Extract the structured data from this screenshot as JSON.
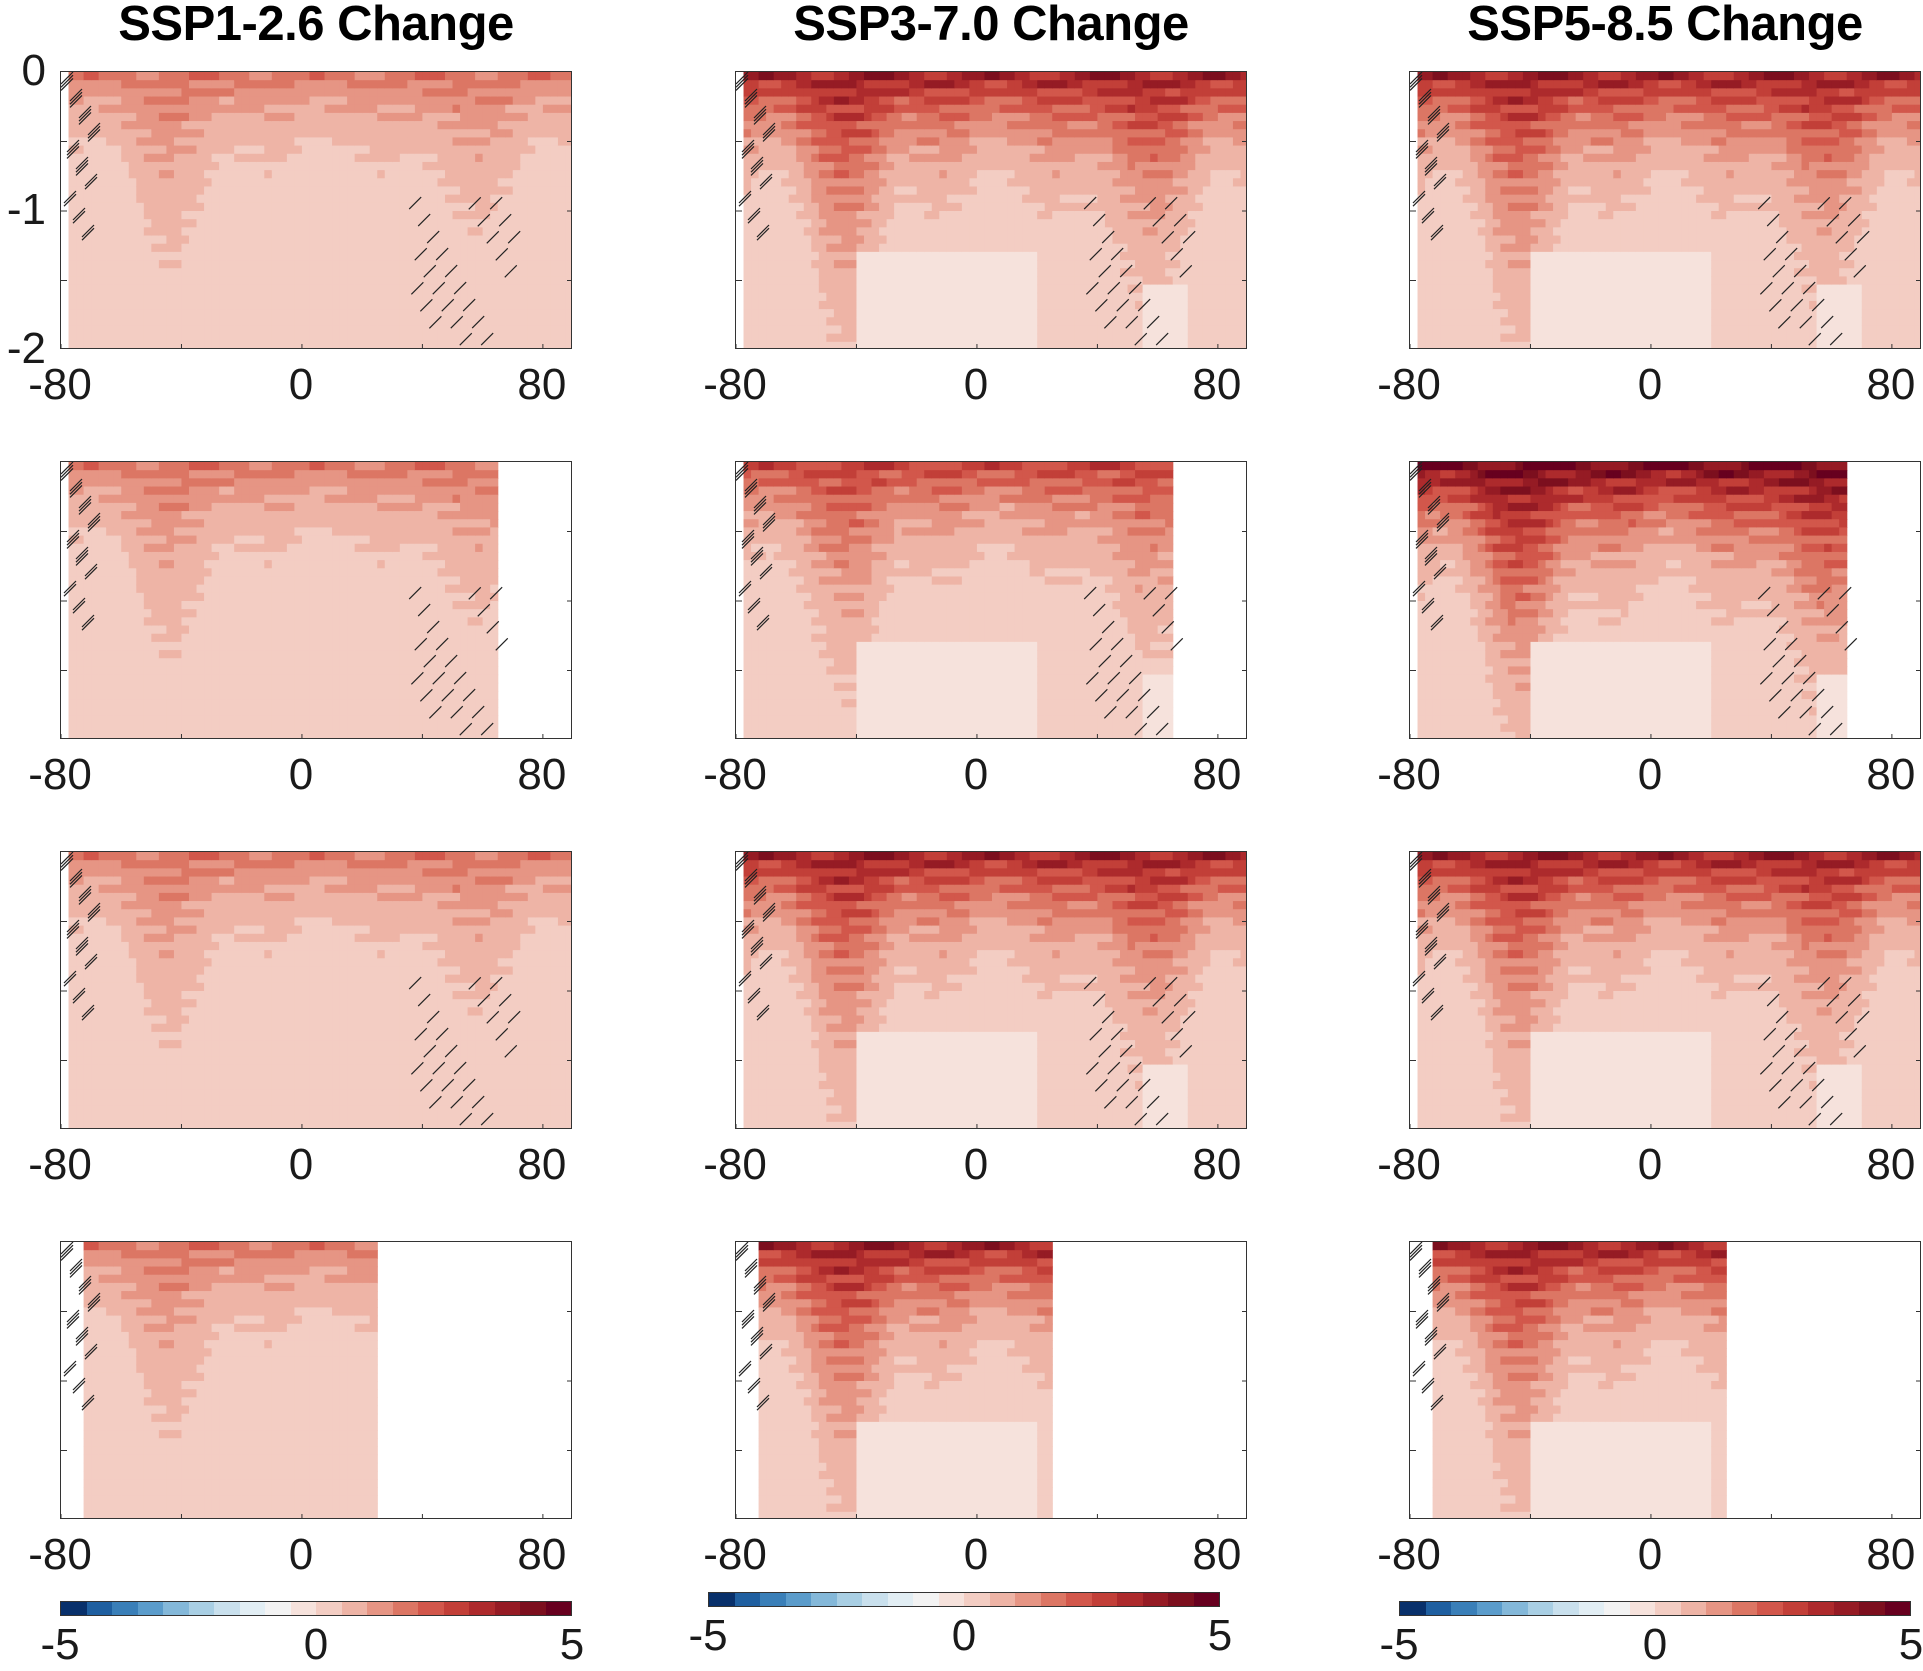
{
  "columns": [
    {
      "title": "SSP1-2.6 Change",
      "scenario": "SSP1-2.6"
    },
    {
      "title": "SSP3-7.0 Change",
      "scenario": "SSP3-7.0"
    },
    {
      "title": "SSP5-8.5 Change",
      "scenario": "SSP5-8.5"
    }
  ],
  "chart_data": {
    "type": "heatmap",
    "layout": "4 rows x 3 columns small multiples",
    "x_ticks": [
      "-80",
      "0",
      "80"
    ],
    "y_ticks": [
      "0",
      "-1",
      "-2"
    ],
    "xlim": [
      -80,
      90
    ],
    "ylim": [
      -2,
      0
    ],
    "hatching": "diagonal hatch marks indicate low model agreement",
    "colorbar": {
      "ticks": [
        "-5",
        "0",
        "5"
      ],
      "range": [
        -5,
        5
      ],
      "levels": 20,
      "colors": [
        "#08306b",
        "#1f5fa0",
        "#3a7fb8",
        "#5b9ccb",
        "#84b8d9",
        "#a9cfe4",
        "#c9e0ed",
        "#e2eef4",
        "#f3f3f3",
        "#f6e2dc",
        "#f3cdc3",
        "#eeb4a6",
        "#e69584",
        "#dc7664",
        "#d2574b",
        "#c23f38",
        "#ad2a2c",
        "#951b24",
        "#7c0f1e",
        "#67001f"
      ]
    },
    "panels": [
      {
        "row": 1,
        "scenario": "SSP1-2.6",
        "max_lat": 90,
        "peak_change": 2
      },
      {
        "row": 1,
        "scenario": "SSP3-7.0",
        "max_lat": 90,
        "peak_change": 4
      },
      {
        "row": 1,
        "scenario": "SSP5-8.5",
        "max_lat": 90,
        "peak_change": 4
      },
      {
        "row": 2,
        "scenario": "SSP1-2.6",
        "max_lat": 65,
        "peak_change": 2
      },
      {
        "row": 2,
        "scenario": "SSP3-7.0",
        "max_lat": 65,
        "peak_change": 3
      },
      {
        "row": 2,
        "scenario": "SSP5-8.5",
        "max_lat": 65,
        "peak_change": 5
      },
      {
        "row": 3,
        "scenario": "SSP1-2.6",
        "max_lat": 90,
        "peak_change": 2
      },
      {
        "row": 3,
        "scenario": "SSP3-7.0",
        "max_lat": 90,
        "peak_change": 4
      },
      {
        "row": 3,
        "scenario": "SSP5-8.5",
        "max_lat": 90,
        "peak_change": 4
      },
      {
        "row": 4,
        "scenario": "SSP1-2.6",
        "max_lat": 25,
        "peak_change": 2
      },
      {
        "row": 4,
        "scenario": "SSP3-7.0",
        "max_lat": 25,
        "peak_change": 4
      },
      {
        "row": 4,
        "scenario": "SSP5-8.5",
        "max_lat": 25,
        "peak_change": 4
      }
    ]
  }
}
